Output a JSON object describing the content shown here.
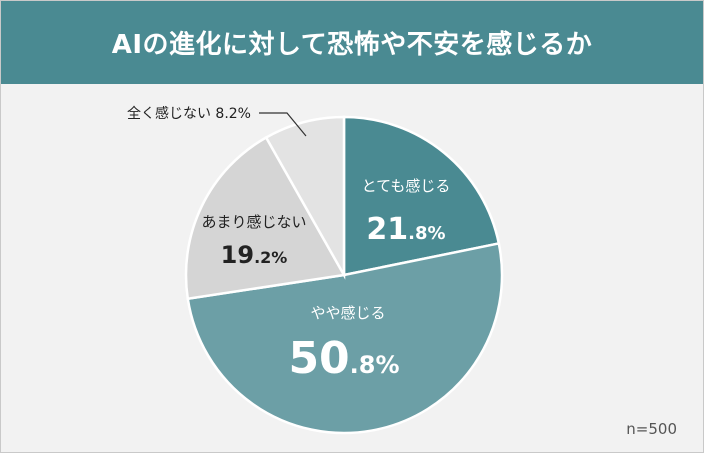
{
  "header": {
    "title": "AIの進化に対して恐怖や不安を感じるか"
  },
  "footer": {
    "sample_size": "n=500"
  },
  "chart_data": {
    "type": "pie",
    "title": "AIの進化に対して恐怖や不安を感じるか",
    "note": "n=500",
    "slices": [
      {
        "label": "とても感じる",
        "value": 21.8,
        "value_label_main": "21",
        "value_label_small": ".8%",
        "color": "#4a8a92",
        "text_color": "#ffffff"
      },
      {
        "label": "やや感じる",
        "value": 50.8,
        "value_label_main": "50",
        "value_label_small": ".8%",
        "color": "#6c9fa6",
        "text_color": "#ffffff"
      },
      {
        "label": "あまり感じない",
        "value": 19.2,
        "value_label_main": "19",
        "value_label_small": ".2%",
        "color": "#d5d5d5",
        "text_color": "#222222"
      },
      {
        "label": "全く感じない",
        "value": 8.2,
        "value_label": "8.2%",
        "color": "#e3e3e3",
        "text_color": "#222222"
      }
    ]
  }
}
